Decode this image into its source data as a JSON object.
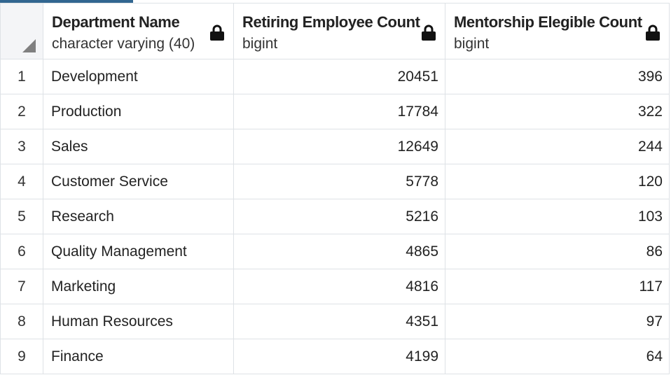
{
  "columns": [
    {
      "name": "Department Name",
      "type": "character varying (40)"
    },
    {
      "name": "Retiring Employee Count",
      "type": "bigint"
    },
    {
      "name": "Mentorship Elegible Count",
      "type": "bigint"
    }
  ],
  "rows": [
    {
      "num": "1",
      "dept": "Development",
      "retiring": "20451",
      "mentorship": "396"
    },
    {
      "num": "2",
      "dept": "Production",
      "retiring": "17784",
      "mentorship": "322"
    },
    {
      "num": "3",
      "dept": "Sales",
      "retiring": "12649",
      "mentorship": "244"
    },
    {
      "num": "4",
      "dept": "Customer Service",
      "retiring": "5778",
      "mentorship": "120"
    },
    {
      "num": "5",
      "dept": "Research",
      "retiring": "5216",
      "mentorship": "103"
    },
    {
      "num": "6",
      "dept": "Quality Management",
      "retiring": "4865",
      "mentorship": "86"
    },
    {
      "num": "7",
      "dept": "Marketing",
      "retiring": "4816",
      "mentorship": "117"
    },
    {
      "num": "8",
      "dept": "Human Resources",
      "retiring": "4351",
      "mentorship": "97"
    },
    {
      "num": "9",
      "dept": "Finance",
      "retiring": "4199",
      "mentorship": "64"
    }
  ],
  "icons": {
    "corner": "select-all-triangle-icon",
    "column_lock": "lock-icon"
  },
  "colors": {
    "tab_accent": "#326690",
    "grid_border": "#dee2e6",
    "corner_triangle": "#808080"
  }
}
